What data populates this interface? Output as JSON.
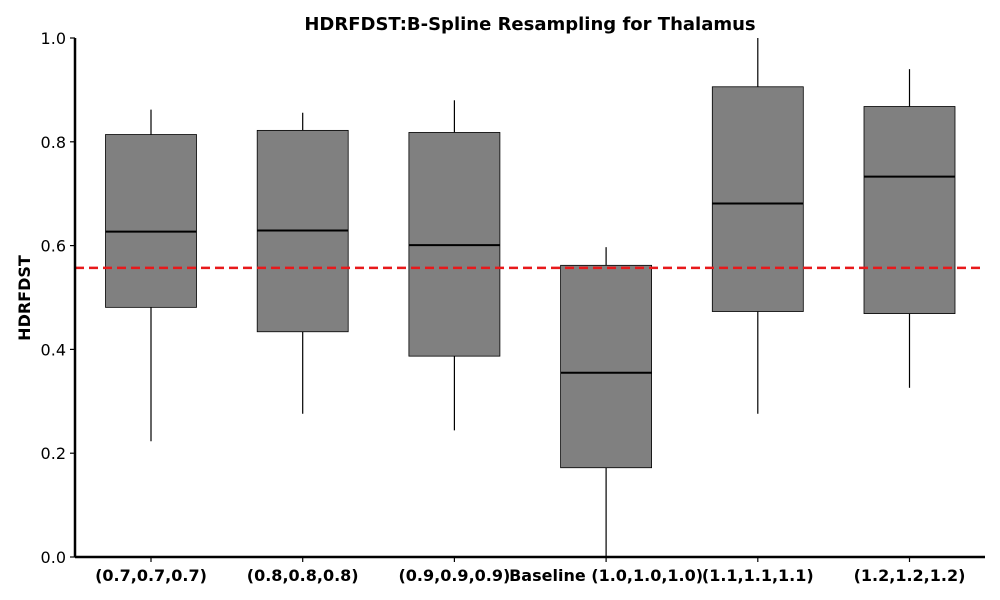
{
  "chart_data": {
    "type": "box",
    "title": "HDRFDST:B-Spline Resampling for Thalamus",
    "xlabel": "",
    "ylabel": "HDRFDST",
    "ylim": [
      0.0,
      1.0
    ],
    "yticks": [
      "0.0",
      "0.2",
      "0.4",
      "0.6",
      "0.8",
      "1.0"
    ],
    "grid": false,
    "box_color": "#808080",
    "median_color": "#000000",
    "reference_line": {
      "y": 0.557,
      "color": "#e8191b",
      "style": "dashed"
    },
    "categories": [
      "(0.7,0.7,0.7)",
      "(0.8,0.8,0.8)",
      "(0.9,0.9,0.9)",
      "Baseline (1.0,1.0,1.0)",
      "(1.1,1.1,1.1)",
      "(1.2,1.2,1.2)"
    ],
    "boxes": [
      {
        "whisker_low": 0.223,
        "q1": 0.481,
        "median": 0.627,
        "q3": 0.814,
        "whisker_high": 0.862
      },
      {
        "whisker_low": 0.276,
        "q1": 0.434,
        "median": 0.629,
        "q3": 0.822,
        "whisker_high": 0.856
      },
      {
        "whisker_low": 0.244,
        "q1": 0.387,
        "median": 0.601,
        "q3": 0.818,
        "whisker_high": 0.88
      },
      {
        "whisker_low": 0.0,
        "q1": 0.172,
        "median": 0.355,
        "q3": 0.562,
        "whisker_high": 0.597
      },
      {
        "whisker_low": 0.276,
        "q1": 0.473,
        "median": 0.681,
        "q3": 0.906,
        "whisker_high": 1.0
      },
      {
        "whisker_low": 0.326,
        "q1": 0.469,
        "median": 0.733,
        "q3": 0.868,
        "whisker_high": 0.94
      }
    ]
  }
}
